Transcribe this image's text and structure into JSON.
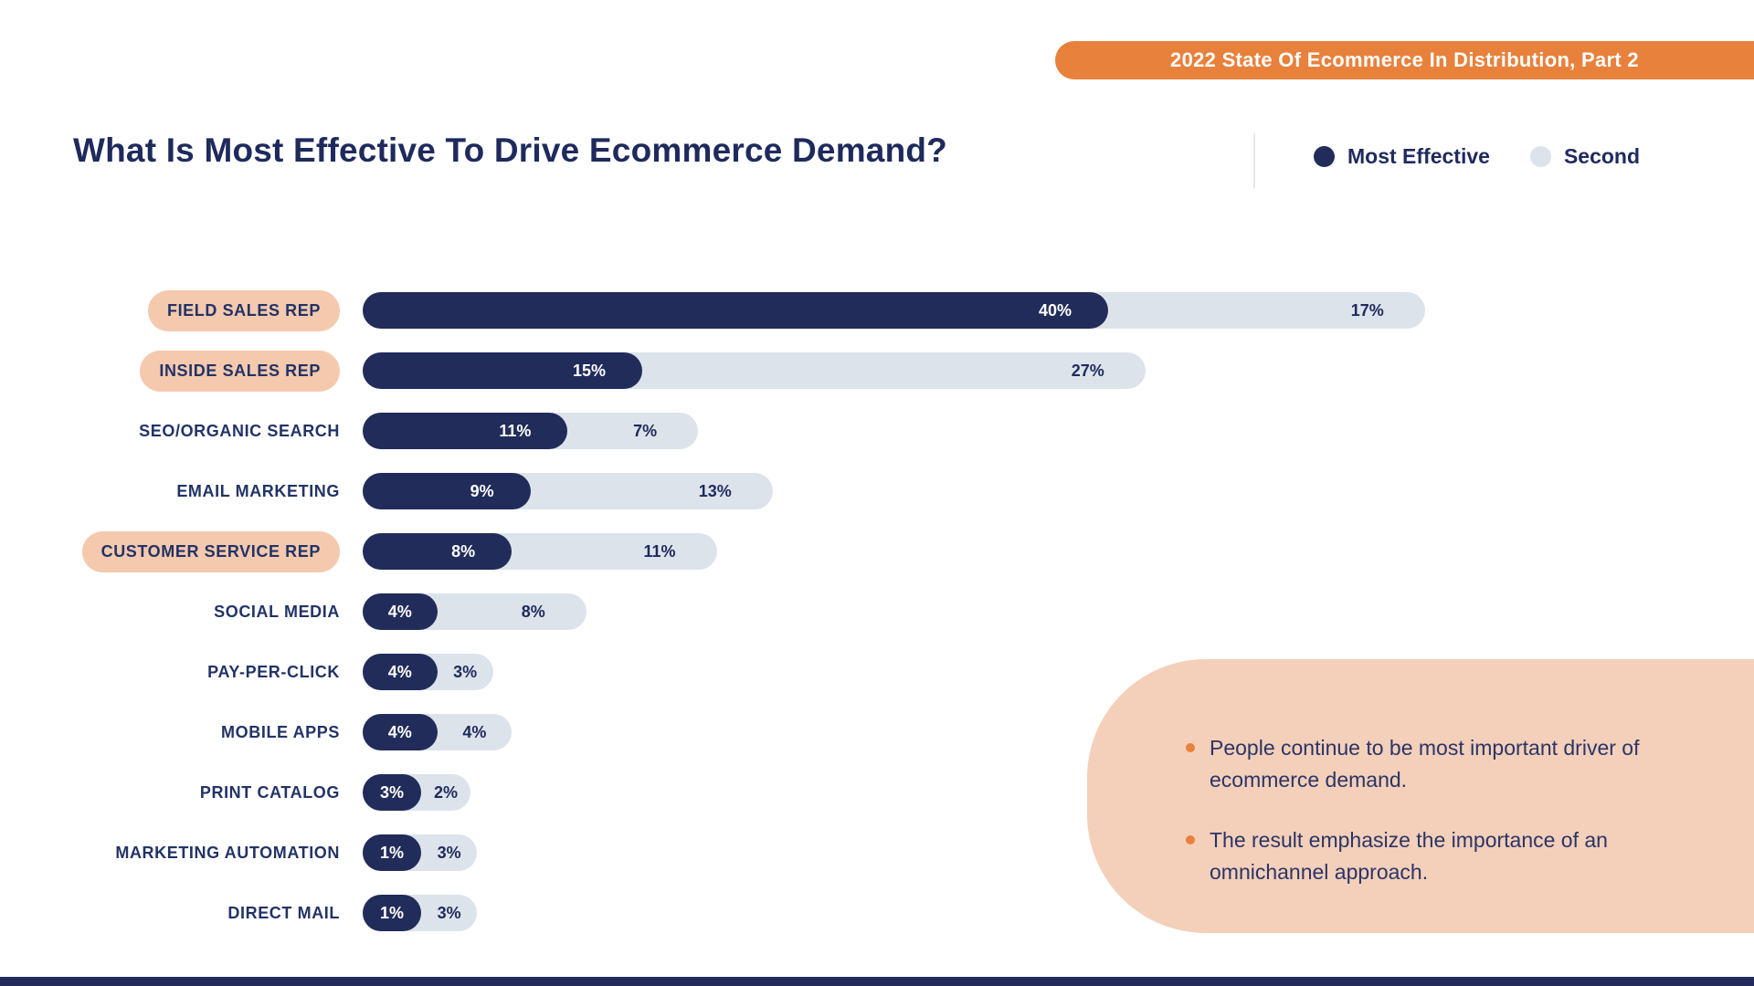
{
  "banner": {
    "text": "2022 State Of Ecommerce In Distribution, Part 2",
    "bg_color": "#E8813C",
    "text_color": "#FFFFFF"
  },
  "header": {
    "title": "What Is Most Effective To Drive Ecommerce Demand?"
  },
  "chart_data": {
    "type": "bar",
    "orientation": "horizontal",
    "value_unit": "%",
    "title": "What Is Most Effective To Drive Ecommerce Demand?",
    "xlabel": "",
    "ylabel": "",
    "xlim": [
      0,
      57
    ],
    "grid": false,
    "legend_position": "top-right",
    "categories": [
      "FIELD SALES REP",
      "INSIDE SALES REP",
      "SEO/ORGANIC SEARCH",
      "EMAIL MARKETING",
      "CUSTOMER SERVICE REP",
      "SOCIAL MEDIA",
      "PAY-PER-CLICK",
      "MOBILE APPS",
      "PRINT CATALOG",
      "MARKETING AUTOMATION",
      "DIRECT MAIL"
    ],
    "highlighted_categories": [
      "FIELD SALES REP",
      "INSIDE SALES REP",
      "CUSTOMER SERVICE REP"
    ],
    "series": [
      {
        "name": "Most Effective",
        "color": "#212C5B",
        "values": [
          40,
          15,
          11,
          9,
          8,
          4,
          4,
          4,
          3,
          1,
          1
        ]
      },
      {
        "name": "Second",
        "color": "#DCE3EB",
        "values": [
          17,
          27,
          7,
          13,
          11,
          8,
          3,
          4,
          2,
          3,
          3
        ]
      }
    ]
  },
  "insights": {
    "bg_color": "#F4CFBA",
    "bullet_color": "#E8813C",
    "items": [
      "People continue to be most important driver of ecommerce demand.",
      "The result emphasize the importance of an omnichannel approach."
    ]
  },
  "colors": {
    "navy": "#212C5B",
    "light_gray_blue": "#DCE3EB",
    "peach_pill": "#F5C9AE",
    "orange": "#E8813C",
    "background": "#FFFFFF"
  }
}
